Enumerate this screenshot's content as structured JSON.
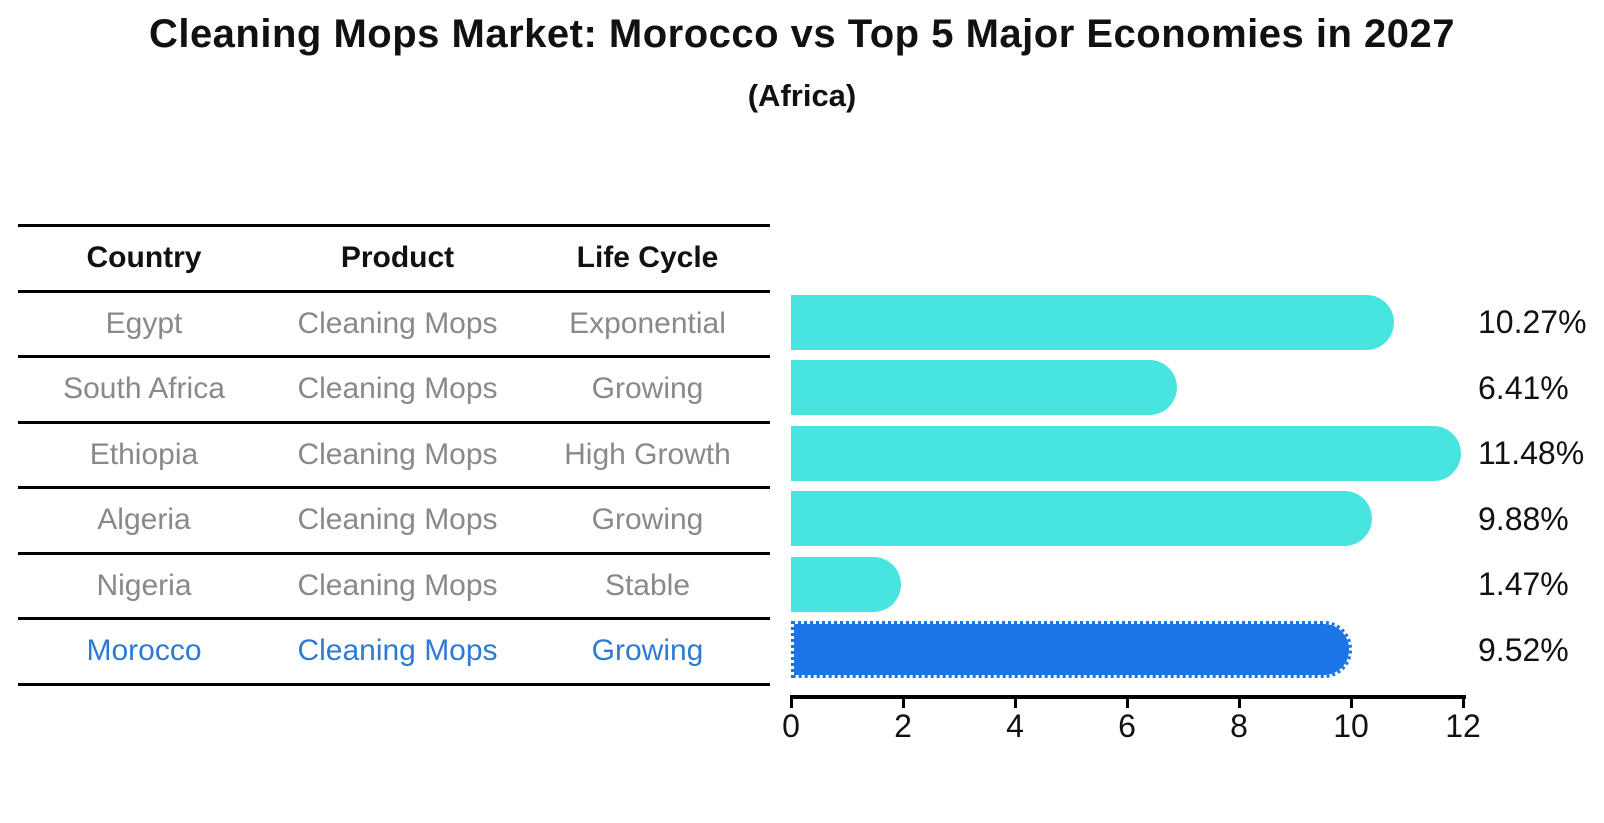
{
  "header": {
    "title": "Cleaning Mops Market: Morocco vs Top 5 Major Economies in 2027",
    "subtitle": "(Africa)"
  },
  "table": {
    "columns": [
      "Country",
      "Product",
      "Life Cycle"
    ],
    "rows": [
      {
        "country": "Egypt",
        "product": "Cleaning Mops",
        "life_cycle": "Exponential"
      },
      {
        "country": "South Africa",
        "product": "Cleaning Mops",
        "life_cycle": "Growing"
      },
      {
        "country": "Ethiopia",
        "product": "Cleaning Mops",
        "life_cycle": "High Growth"
      },
      {
        "country": "Algeria",
        "product": "Cleaning Mops",
        "life_cycle": "Growing"
      },
      {
        "country": "Nigeria",
        "product": "Cleaning Mops",
        "life_cycle": "Stable"
      },
      {
        "country": "Morocco",
        "product": "Cleaning Mops",
        "life_cycle": "Growing"
      }
    ],
    "highlight_row": "Morocco"
  },
  "chart_data": {
    "type": "bar",
    "orientation": "horizontal",
    "title": "Cleaning Mops Market: Morocco vs Top 5 Major Economies in 2027",
    "subtitle": "(Africa)",
    "categories": [
      "Egypt",
      "South Africa",
      "Ethiopia",
      "Algeria",
      "Nigeria",
      "Morocco"
    ],
    "values": [
      10.27,
      6.41,
      11.48,
      9.88,
      1.47,
      9.52
    ],
    "value_labels": [
      "10.27%",
      "6.41%",
      "11.48%",
      "9.88%",
      "1.47%",
      "9.52%"
    ],
    "unit": "%",
    "xlim": [
      0,
      12
    ],
    "x_ticks": [
      "0",
      "2",
      "4",
      "6",
      "8",
      "10",
      "12"
    ],
    "grid": false,
    "legend": false,
    "highlight_index": 5
  },
  "colors": {
    "bar_cyan": "#48E5E0",
    "bar_blue": "#1B75E6",
    "highlight_text": "#2C7BD4",
    "row_text": "#898989",
    "header_text": "#111111",
    "line_black": "#000000"
  }
}
